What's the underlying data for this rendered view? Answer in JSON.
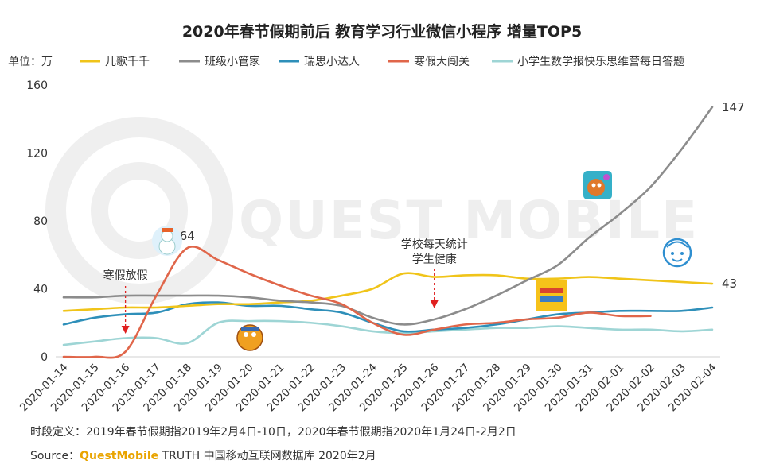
{
  "chart_data": {
    "type": "line",
    "title": "2020年春节假期前后 教育学习行业微信小程序 增量TOP5",
    "unit_label": "单位：万",
    "ylim": [
      0,
      160
    ],
    "yticks": [
      0,
      40,
      80,
      120,
      160
    ],
    "categories": [
      "2020-01-14",
      "2020-01-15",
      "2020-01-16",
      "2020-01-17",
      "2020-01-18",
      "2020-01-19",
      "2020-01-20",
      "2020-01-21",
      "2020-01-22",
      "2020-01-23",
      "2020-01-24",
      "2020-01-25",
      "2020-01-26",
      "2020-01-27",
      "2020-01-28",
      "2020-01-29",
      "2020-01-30",
      "2020-01-31",
      "2020-02-01",
      "2020-02-02",
      "2020-02-03",
      "2020-02-04"
    ],
    "series": [
      {
        "name": "儿歌千千",
        "color": "#F0C419",
        "values": [
          27,
          28,
          29,
          29,
          30,
          31,
          31,
          32,
          33,
          36,
          40,
          49,
          47,
          48,
          48,
          46,
          46,
          47,
          46,
          45,
          44,
          43
        ]
      },
      {
        "name": "班级小管家",
        "color": "#8C8C8C",
        "values": [
          35,
          35,
          36,
          36,
          36,
          36,
          35,
          33,
          32,
          30,
          23,
          19,
          22,
          28,
          36,
          45,
          54,
          70,
          84,
          100,
          122,
          147
        ]
      },
      {
        "name": "瑞思小达人",
        "color": "#2E8FB9",
        "values": [
          19,
          23,
          25,
          26,
          31,
          32,
          30,
          30,
          28,
          26,
          20,
          15,
          16,
          17,
          19,
          22,
          25,
          26,
          27,
          27,
          27,
          29
        ]
      },
      {
        "name": "寒假大闯关",
        "color": "#E0664A",
        "values": [
          0,
          0,
          3,
          36,
          64,
          57,
          49,
          42,
          36,
          31,
          20,
          13,
          16,
          19,
          20,
          22,
          23,
          26,
          24,
          24,
          null,
          null
        ]
      },
      {
        "name": "小学生数学报快乐思维营每日答题",
        "color": "#9ED5D5",
        "values": [
          7,
          9,
          11,
          11,
          8,
          20,
          21,
          21,
          20,
          18,
          15,
          14,
          15,
          16,
          17,
          17,
          18,
          17,
          16,
          16,
          15,
          16
        ]
      }
    ],
    "end_labels": [
      {
        "series": "班级小管家",
        "text": "147"
      },
      {
        "series": "儿歌千千",
        "text": "43"
      }
    ],
    "peak_label": {
      "series": "寒假大闯关",
      "text": "64"
    },
    "annotations": [
      {
        "text": "寒假放假",
        "date": "2020-01-16"
      },
      {
        "text": "学校每天统计",
        "text2": "学生健康",
        "date": "2020-01-26"
      }
    ]
  },
  "watermark": "QUEST MOBILE",
  "footnote": "时段定义：2019年春节假期指2019年2月4日-10日，2020年春节假期指2020年1月24日-2月2日",
  "source": {
    "prefix": "Source：",
    "brand": "QuestMobile",
    "rest": " TRUTH 中国移动互联网数据库 2020年2月"
  },
  "icons": [
    "snowman-icon",
    "toy-icon",
    "cartoon-dog-icon",
    "crayon-logo-icon",
    "baby-face-icon"
  ]
}
